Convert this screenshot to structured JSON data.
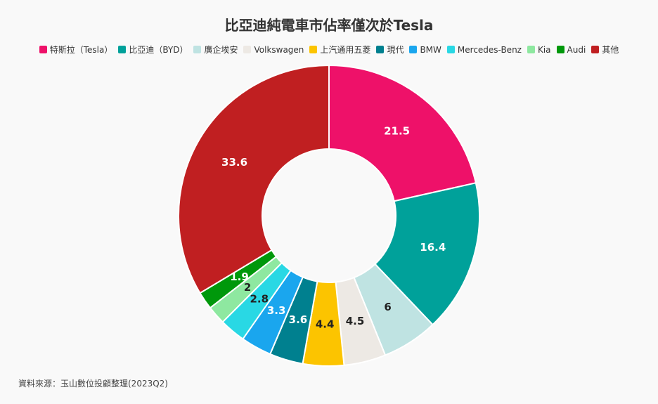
{
  "chart_data": {
    "type": "pie",
    "style": "donut",
    "title": "比亞迪純電車市佔率僅次於Tesla",
    "legend_position": "top",
    "categories": [
      "特斯拉（Tesla）",
      "比亞迪（BYD）",
      "廣企埃安",
      "Volkswagen",
      "上汽通用五菱",
      "現代",
      "BMW",
      "Mercedes-Benz",
      "Kia",
      "Audi",
      "其他"
    ],
    "values": [
      21.5,
      16.4,
      6,
      4.5,
      4.4,
      3.6,
      3.3,
      2.8,
      2,
      1.9,
      33.6
    ],
    "labels": [
      "21.5",
      "16.4",
      "6",
      "4.5",
      "4.4",
      "3.6",
      "3.3",
      "2.8",
      "2",
      "1.9",
      "33.6"
    ],
    "colors": [
      "#ee1169",
      "#00a19a",
      "#bfe3e2",
      "#ede9e4",
      "#fcc400",
      "#00808f",
      "#1aa6ee",
      "#29d8e4",
      "#8ee8a0",
      "#00980b",
      "#c01f21"
    ],
    "label_colors": [
      "#ffffff",
      "#ffffff",
      "#222222",
      "#222222",
      "#222222",
      "#ffffff",
      "#ffffff",
      "#222222",
      "#222222",
      "#ffffff",
      "#ffffff"
    ]
  },
  "source": "資料來源：玉山數位投顧整理(2023Q2)"
}
